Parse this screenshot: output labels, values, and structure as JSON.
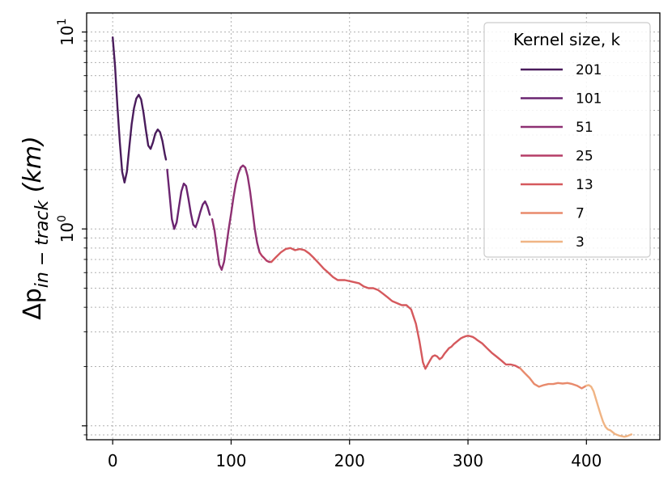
{
  "chart_data": {
    "type": "line",
    "title": "",
    "xlabel": "",
    "ylabel": "Δp_{in-track} (km)",
    "ylabel_parts": {
      "prefix": "Δp",
      "subscript": "in − track",
      "suffix": " (km)"
    },
    "y_scale": "log",
    "xlim": [
      -22,
      462
    ],
    "ylim": [
      0.085,
      12.5
    ],
    "x_ticks": [
      0,
      100,
      200,
      300,
      400
    ],
    "x_tick_labels": [
      "0",
      "100",
      "200",
      "300",
      "400"
    ],
    "y_major_ticks": [
      1,
      10
    ],
    "y_tick_labels": [
      {
        "base": "10",
        "exp": "0"
      },
      {
        "base": "10",
        "exp": "1"
      }
    ],
    "grid": true,
    "legend": {
      "title": "Kernel size, k",
      "placement": "top-right"
    },
    "series": [
      {
        "name": "201",
        "color": "#4a1c5c",
        "x": [
          0,
          2,
          4,
          6,
          8,
          10,
          12,
          14,
          16,
          18,
          20,
          22,
          24,
          26,
          28,
          30,
          32,
          34,
          36,
          38,
          40,
          42,
          44,
          45
        ],
        "y": [
          9.4,
          6.7,
          4.2,
          2.75,
          1.95,
          1.72,
          1.95,
          2.6,
          3.4,
          4.1,
          4.6,
          4.8,
          4.55,
          3.9,
          3.2,
          2.65,
          2.55,
          2.75,
          3.05,
          3.2,
          3.1,
          2.8,
          2.4,
          2.25
        ]
      },
      {
        "name": "101",
        "color": "#6a2470",
        "x": [
          46,
          48,
          50,
          52,
          54,
          56,
          58,
          60,
          62,
          64,
          66,
          68,
          70,
          72,
          74,
          76,
          78,
          80,
          82
        ],
        "y": [
          2.0,
          1.5,
          1.12,
          1.0,
          1.08,
          1.3,
          1.55,
          1.7,
          1.65,
          1.42,
          1.2,
          1.05,
          1.02,
          1.1,
          1.22,
          1.33,
          1.38,
          1.3,
          1.18
        ]
      },
      {
        "name": "51",
        "color": "#8e3072",
        "x": [
          84,
          86,
          88,
          90,
          92,
          94,
          96,
          98,
          100,
          102,
          104,
          106,
          108,
          110,
          112,
          114,
          116,
          118,
          120,
          122,
          124
        ],
        "y": [
          1.12,
          0.98,
          0.8,
          0.66,
          0.62,
          0.68,
          0.82,
          1.0,
          1.2,
          1.45,
          1.7,
          1.9,
          2.05,
          2.1,
          2.05,
          1.85,
          1.55,
          1.25,
          1.0,
          0.85,
          0.76
        ]
      },
      {
        "name": "25",
        "color": "#b53d67",
        "x": [
          124,
          126,
          128,
          130,
          132,
          134
        ],
        "y": [
          0.76,
          0.73,
          0.71,
          0.69,
          0.68,
          0.68
        ]
      },
      {
        "name": "13",
        "color": "#d5595d",
        "x": [
          134,
          138,
          142,
          146,
          150,
          154,
          158,
          162,
          166,
          170,
          174,
          178,
          182,
          186,
          190,
          196,
          202,
          208,
          212,
          216,
          220,
          224,
          228,
          232,
          236,
          240,
          244,
          248,
          252,
          256,
          259,
          262,
          264,
          266,
          268,
          270,
          272,
          274,
          276,
          278,
          280,
          282,
          284,
          286,
          288,
          290,
          292,
          294,
          296,
          298,
          300,
          302,
          304,
          306,
          308,
          312,
          316,
          320,
          324,
          328,
          332,
          336,
          340,
          344
        ],
        "y": [
          0.68,
          0.72,
          0.76,
          0.79,
          0.8,
          0.78,
          0.79,
          0.78,
          0.75,
          0.71,
          0.67,
          0.63,
          0.6,
          0.57,
          0.55,
          0.55,
          0.54,
          0.53,
          0.51,
          0.5,
          0.5,
          0.49,
          0.47,
          0.45,
          0.43,
          0.42,
          0.41,
          0.41,
          0.39,
          0.33,
          0.27,
          0.21,
          0.195,
          0.205,
          0.215,
          0.225,
          0.228,
          0.225,
          0.218,
          0.222,
          0.232,
          0.24,
          0.248,
          0.252,
          0.26,
          0.266,
          0.272,
          0.278,
          0.282,
          0.285,
          0.287,
          0.285,
          0.283,
          0.278,
          0.272,
          0.262,
          0.248,
          0.235,
          0.225,
          0.215,
          0.205,
          0.205,
          0.202,
          0.196
        ]
      },
      {
        "name": "7",
        "color": "#e88a6c",
        "x": [
          344,
          348,
          352,
          356,
          360,
          364,
          368,
          372,
          376,
          380,
          384,
          388,
          392,
          396,
          400
        ],
        "y": [
          0.196,
          0.185,
          0.175,
          0.163,
          0.158,
          0.161,
          0.163,
          0.163,
          0.165,
          0.164,
          0.165,
          0.163,
          0.16,
          0.155,
          0.16
        ]
      },
      {
        "name": "3",
        "color": "#f0b484",
        "x": [
          400,
          402,
          404,
          406,
          408,
          410,
          412,
          414,
          416,
          418,
          420,
          422,
          424,
          426,
          428,
          430,
          432,
          434,
          436,
          438
        ],
        "y": [
          0.16,
          0.161,
          0.158,
          0.15,
          0.137,
          0.125,
          0.114,
          0.105,
          0.099,
          0.096,
          0.095,
          0.093,
          0.091,
          0.09,
          0.089,
          0.0885,
          0.088,
          0.0885,
          0.0895,
          0.0905
        ]
      }
    ]
  }
}
